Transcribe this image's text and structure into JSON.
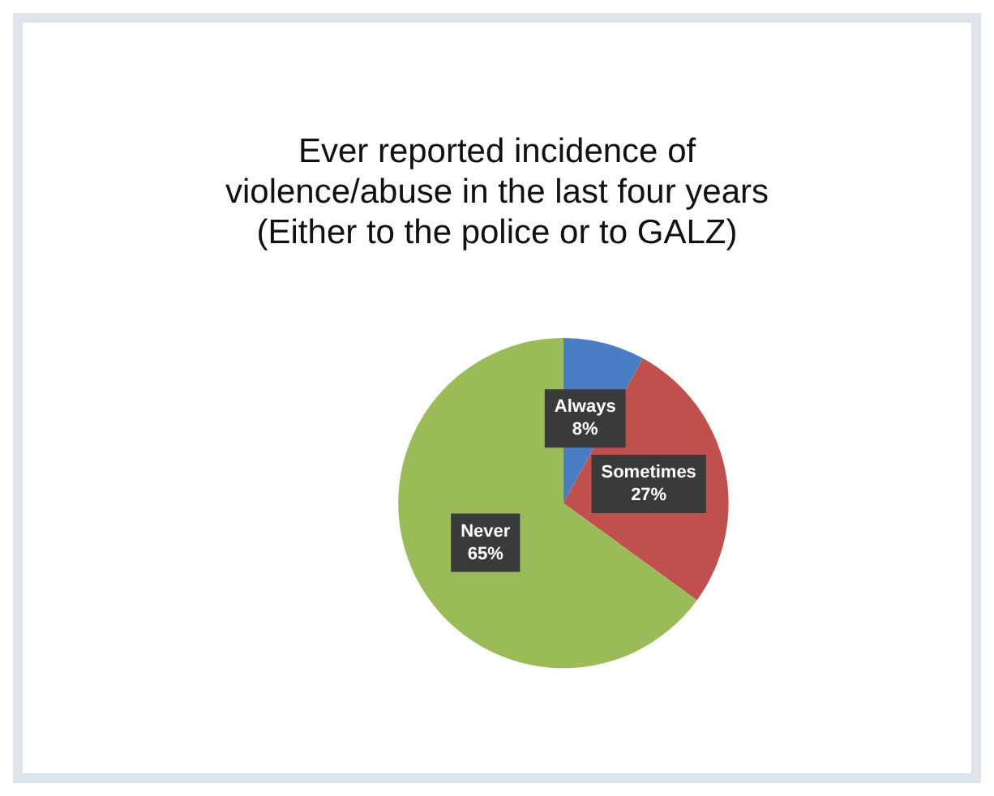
{
  "chart_data": {
    "type": "pie",
    "title": "Ever reported incidence of\nviolence/abuse in the last four years\n(Either to the police or to GALZ)",
    "categories": [
      "Always",
      "Sometimes",
      "Never"
    ],
    "values": [
      8,
      27,
      65
    ],
    "value_labels": [
      "8%",
      "27%",
      "65%"
    ],
    "colors": [
      "#4a7ec4",
      "#c0504d",
      "#9bbb59"
    ],
    "legend": false
  }
}
